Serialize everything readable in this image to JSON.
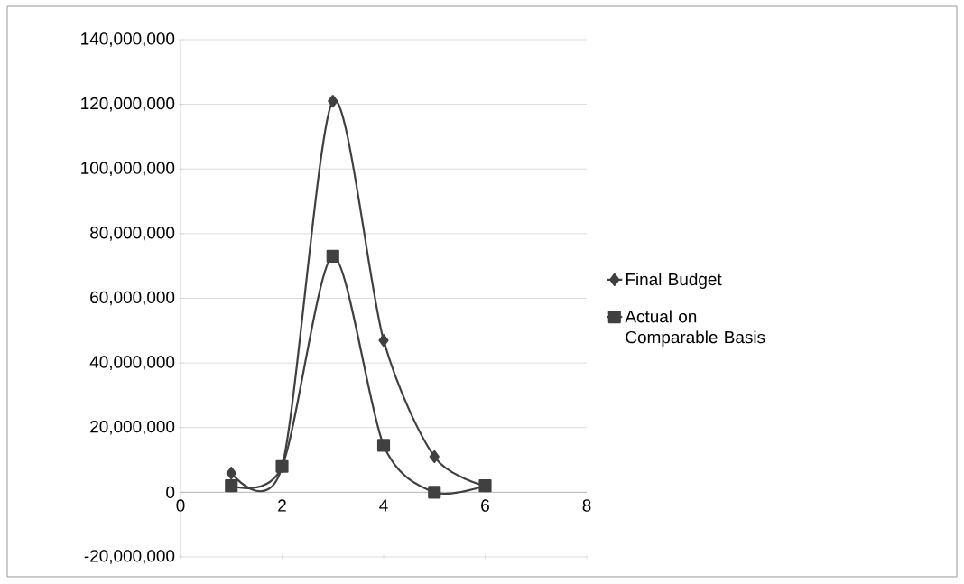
{
  "chart_data": {
    "type": "line",
    "x": [
      1,
      2,
      3,
      4,
      5,
      6
    ],
    "series": [
      {
        "name": "Final Budget",
        "color": "#404040",
        "marker": "diamond",
        "values": [
          5900000,
          8000000,
          121000000,
          47000000,
          11000000,
          2000000
        ]
      },
      {
        "name": "Actual on Comparable Basis",
        "color": "#404040",
        "marker": "square",
        "values": [
          2000000,
          8000000,
          73000000,
          14500000,
          0,
          2000000
        ]
      }
    ],
    "xlim": [
      0,
      8
    ],
    "xticks": [
      0,
      2,
      4,
      6,
      8
    ],
    "ylim": [
      -20000000,
      140000000
    ],
    "yticks": [
      {
        "value": -20000000,
        "label": "-20,000,000"
      },
      0,
      {
        "value": 20000000,
        "label": "20,000,000"
      },
      {
        "value": 40000000,
        "label": "40,000,000"
      },
      {
        "value": 60000000,
        "label": "60,000,000"
      },
      {
        "value": 80000000,
        "label": "80,000,000"
      },
      {
        "value": 100000000,
        "label": "100,000,000"
      },
      {
        "value": 120000000,
        "label": "120,000,000"
      },
      {
        "value": 140000000,
        "label": "140,000,000"
      }
    ],
    "grid": "y",
    "legend": "right",
    "line_style": "solid"
  }
}
